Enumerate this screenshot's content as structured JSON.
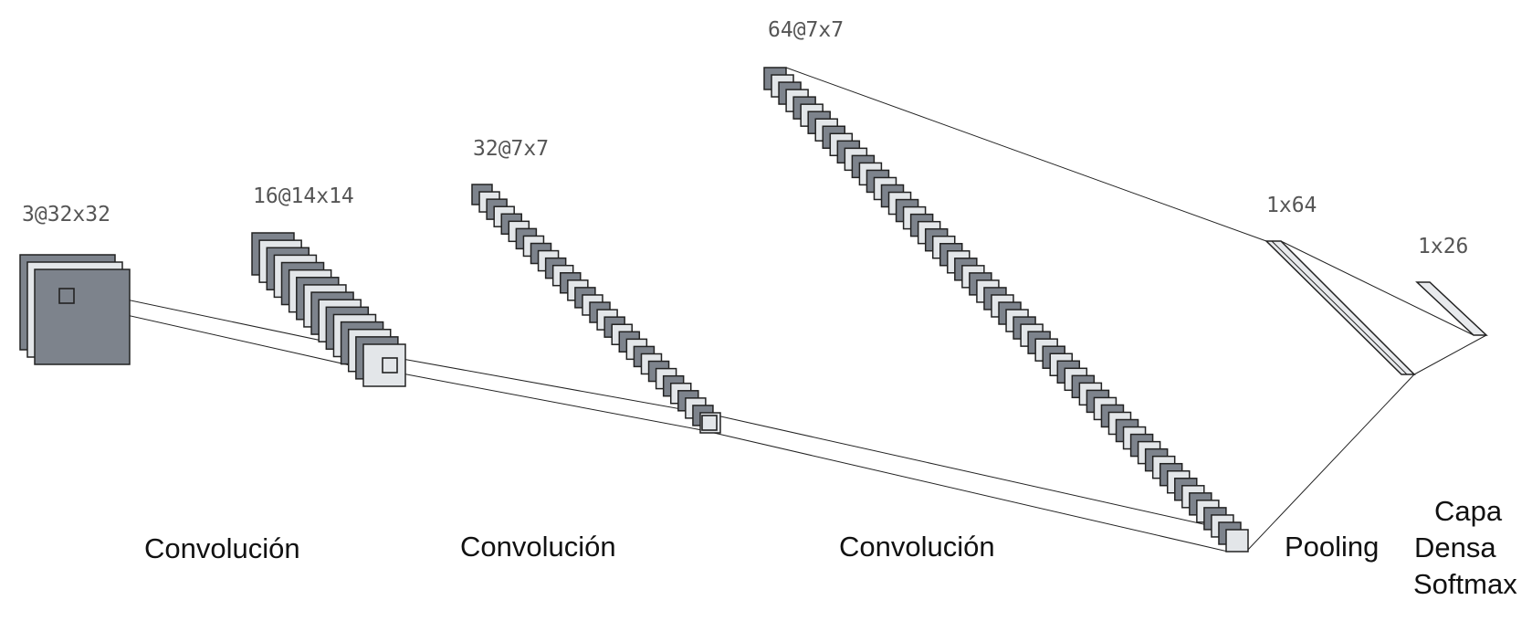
{
  "layers": [
    {
      "id": "input",
      "dims": "3@32x32",
      "caption": null
    },
    {
      "id": "conv1",
      "dims": "16@14x14",
      "caption": "Convolución"
    },
    {
      "id": "conv2",
      "dims": "32@7x7",
      "caption": "Convolución"
    },
    {
      "id": "conv3",
      "dims": "64@7x7",
      "caption": "Convolución"
    },
    {
      "id": "pool",
      "dims": "1x64",
      "caption": "Pooling"
    },
    {
      "id": "dense",
      "dims": "1x26",
      "caption_lines": [
        "Capa",
        "Densa",
        "Softmax"
      ]
    }
  ],
  "colors": {
    "dark_map": "#7d838c",
    "light_map": "#e3e6e9",
    "stroke": "#222222"
  }
}
